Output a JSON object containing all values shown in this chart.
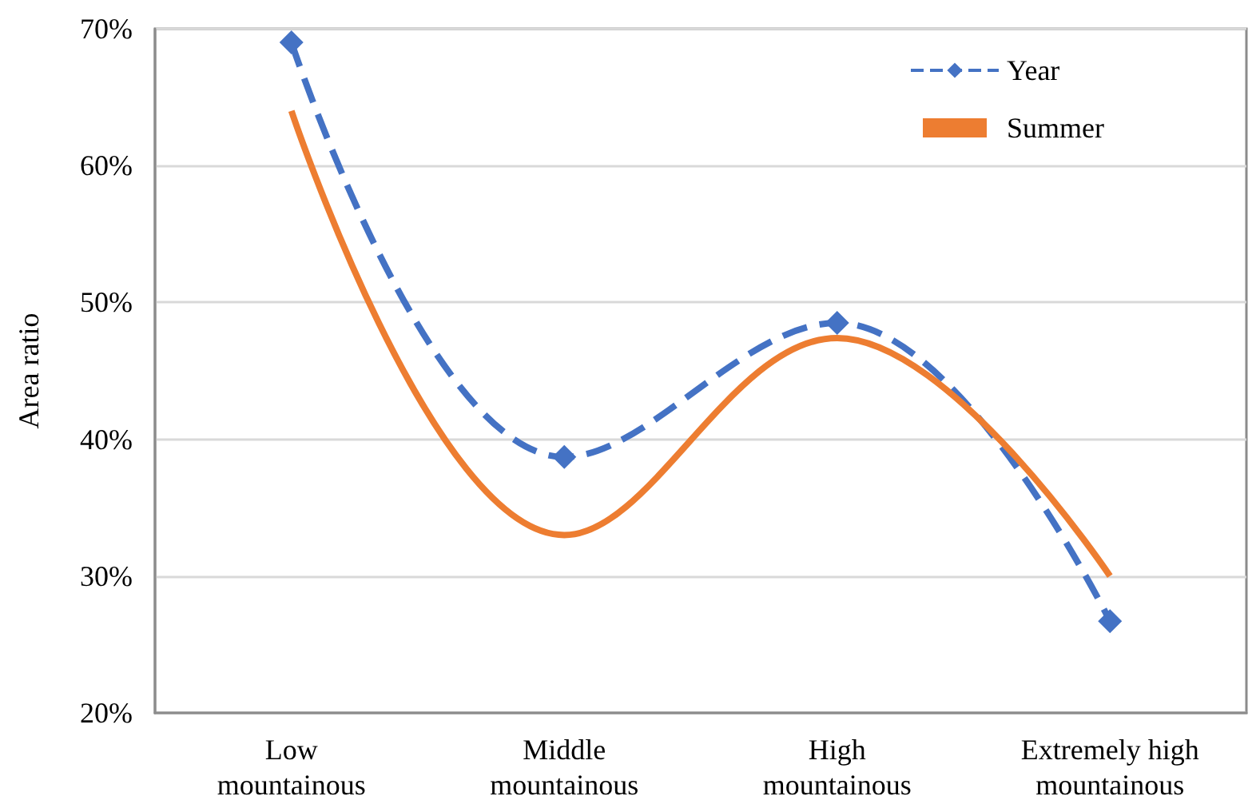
{
  "chart_data": {
    "type": "line",
    "ylabel": "Area ratio",
    "categories": [
      "Low\nmountainous",
      "Middle\nmountainous",
      "High\nmountainous",
      "Extremely high\nmountainous"
    ],
    "series": [
      {
        "name": "Year",
        "color": "#4472c4",
        "values": [
          69,
          38.7,
          48.5,
          26.7
        ],
        "marker": "diamond",
        "line_style": "dashed"
      },
      {
        "name": "Summer",
        "color": "#ed7d31",
        "values": [
          64,
          33,
          47.4,
          30
        ],
        "marker": "none",
        "line_style": "solid"
      }
    ],
    "ylim": [
      20,
      70
    ],
    "yticks": [
      {
        "value": 20,
        "label": "20%"
      },
      {
        "value": 30,
        "label": "30%"
      },
      {
        "value": 40,
        "label": "40%"
      },
      {
        "value": 50,
        "label": "50%"
      },
      {
        "value": 60,
        "label": "60%"
      },
      {
        "value": 70,
        "label": "70%"
      }
    ],
    "grid": "y",
    "legend": "top right"
  }
}
